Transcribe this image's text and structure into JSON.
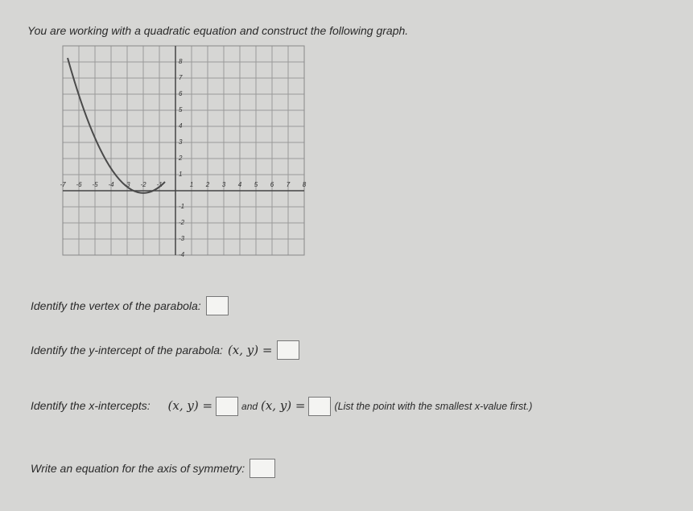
{
  "header": {
    "text": "You are working with a quadratic equation and construct the following graph."
  },
  "graph": {
    "x_labels": [
      -7,
      -6,
      -5,
      -4,
      -3,
      -2,
      -1,
      1,
      2,
      3,
      4,
      5,
      6,
      7,
      8
    ],
    "y_labels": [
      8,
      7,
      6,
      5,
      4,
      3,
      2,
      1,
      -1,
      -2,
      -3,
      -4
    ]
  },
  "questions": [
    {
      "text": "Identify the vertex of the parabola:"
    },
    {
      "text": "Identify the y-intercept of the parabola:",
      "math": "(x, y) ="
    },
    {
      "text": "Identify the x-intercepts:",
      "math": "(x, y) =",
      "joiner": "and",
      "math2": "(x, y) =",
      "note": "(List the point with the smallest x-value first.)"
    },
    {
      "text": "Write an equation for the axis of symmetry:"
    }
  ]
}
